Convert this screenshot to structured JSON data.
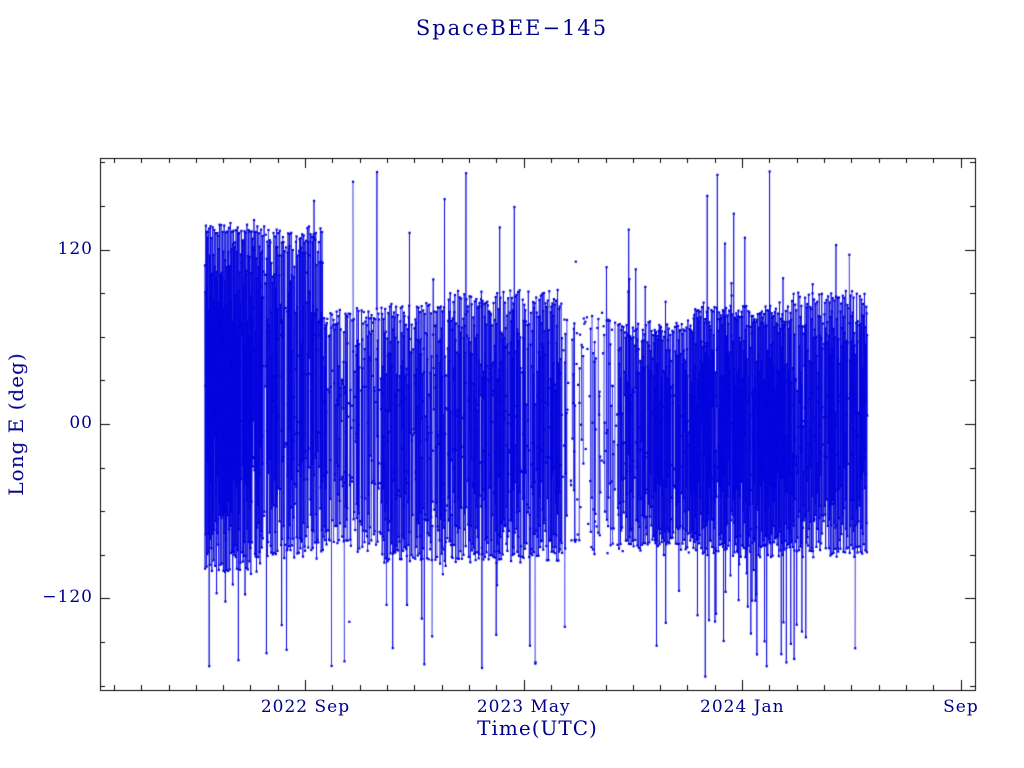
{
  "page": {
    "background": "#ffffff"
  },
  "chart_data": {
    "type": "scatter",
    "title": "SpaceBEE−145",
    "xlabel": "Time(UTC)",
    "ylabel": "Long E (deg)",
    "text_color": "#00008b",
    "axis_color": "#000000",
    "series_color": "#0000dd",
    "marker": "small-square",
    "line_connected": true,
    "grid": false,
    "legend": "none",
    "x_domain": [
      2022.04,
      2024.71
    ],
    "y_domain": [
      -183,
      183
    ],
    "x_ticks": [
      {
        "value": 2022.667,
        "label": "2022 Sep"
      },
      {
        "value": 2023.333,
        "label": "2023 May"
      },
      {
        "value": 2024.0,
        "label": "2024 Jan"
      },
      {
        "value": 2024.667,
        "label": "Sep"
      }
    ],
    "x_minor_step_years": 0.0833333,
    "y_ticks": [
      {
        "value": -120,
        "label": "−120"
      },
      {
        "value": 0,
        "label": "00"
      },
      {
        "value": 120,
        "label": "120"
      }
    ],
    "y_minor_step": 30,
    "sim": {
      "comment_visual": "dense blue longitude-vs-time track with wrap-around verticals; persistent dense band near -75 deg, upper turning band 60..140 deg, data span mid-2022 to mid-2024",
      "seed": 7,
      "samples": 3400,
      "t_start": 2022.36,
      "t_end": 2024.381,
      "phase_step": 2.35,
      "phase_jitter": 0.3,
      "noise": 9,
      "segments": [
        {
          "t0": 2022.36,
          "t1": 2022.52,
          "center": 18,
          "amp": 118,
          "density": 1.0,
          "spike": 0.1
        },
        {
          "t0": 2022.52,
          "t1": 2022.72,
          "center": 22,
          "amp": 112,
          "density": 0.85,
          "spike": 0.06
        },
        {
          "t0": 2022.72,
          "t1": 2022.9,
          "center": -4,
          "amp": 80,
          "density": 0.7,
          "spike": 0.05
        },
        {
          "t0": 2022.9,
          "t1": 2023.1,
          "center": -6,
          "amp": 86,
          "density": 0.8,
          "spike": 0.06
        },
        {
          "t0": 2023.1,
          "t1": 2023.45,
          "center": -2,
          "amp": 90,
          "density": 0.85,
          "spike": 0.07
        },
        {
          "t0": 2023.45,
          "t1": 2023.62,
          "center": -6,
          "amp": 80,
          "density": 0.45,
          "spike": 0.08
        },
        {
          "t0": 2023.62,
          "t1": 2023.85,
          "center": -8,
          "amp": 76,
          "density": 0.9,
          "spike": 0.06
        },
        {
          "t0": 2023.85,
          "t1": 2024.15,
          "center": -4,
          "amp": 84,
          "density": 1.0,
          "spike": 0.1
        },
        {
          "t0": 2024.15,
          "t1": 2024.381,
          "center": 0,
          "amp": 88,
          "density": 0.9,
          "spike": 0.08
        }
      ]
    }
  }
}
